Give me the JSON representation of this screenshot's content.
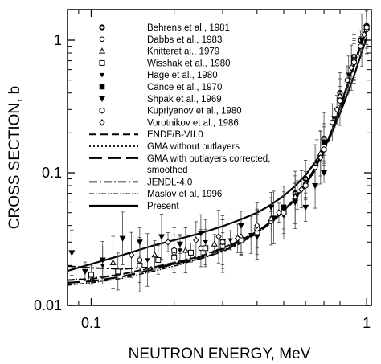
{
  "chart_data": {
    "type": "scatter",
    "xlabel": "NEUTRON ENERGY, MeV",
    "ylabel": "CROSS SECTION, b",
    "xscale": "log",
    "yscale": "log",
    "xlim": [
      0.082,
      1.04
    ],
    "ylim": [
      0.01,
      1.7
    ],
    "x_ticks": [
      {
        "value": 0.1,
        "label": "0.1"
      },
      {
        "value": 1,
        "label": "1"
      }
    ],
    "y_ticks": [
      {
        "value": 0.01,
        "label": "0.01"
      },
      {
        "value": 0.1,
        "label": "0.1"
      },
      {
        "value": 1,
        "label": "1"
      }
    ],
    "grid": false,
    "legend_position": "top-left",
    "series": [
      {
        "name": "Behrens et al., 1981",
        "kind": "points",
        "marker": "circle-bold",
        "points": [
          [
            0.55,
            0.07
          ],
          [
            0.6,
            0.09
          ],
          [
            0.7,
            0.18
          ],
          [
            0.8,
            0.4
          ],
          [
            0.9,
            0.75
          ],
          [
            0.95,
            1.0
          ],
          [
            1.0,
            1.28
          ]
        ]
      },
      {
        "name": "Dabbs et al., 1983",
        "kind": "points",
        "marker": "circle-open",
        "points": [
          [
            0.15,
            0.022
          ],
          [
            0.2,
            0.025
          ],
          [
            0.25,
            0.027
          ],
          [
            0.3,
            0.028
          ],
          [
            0.35,
            0.032
          ],
          [
            0.4,
            0.036
          ],
          [
            0.45,
            0.043
          ],
          [
            0.5,
            0.052
          ],
          [
            0.55,
            0.065
          ],
          [
            0.6,
            0.082
          ],
          [
            0.65,
            0.11
          ],
          [
            0.7,
            0.16
          ],
          [
            0.75,
            0.24
          ],
          [
            0.8,
            0.36
          ],
          [
            0.85,
            0.5
          ],
          [
            0.9,
            0.7
          ],
          [
            0.95,
            0.9
          ],
          [
            1.0,
            1.2
          ]
        ]
      },
      {
        "name": "Knitteret al., 1979",
        "kind": "points",
        "marker": "triangle-open",
        "points": [
          [
            0.12,
            0.021
          ],
          [
            0.17,
            0.024
          ],
          [
            0.22,
            0.026
          ],
          [
            0.28,
            0.029
          ],
          [
            0.35,
            0.033
          ],
          [
            0.45,
            0.045
          ],
          [
            0.55,
            0.066
          ],
          [
            0.68,
            0.14
          ],
          [
            0.8,
            0.38
          ],
          [
            0.9,
            0.72
          ],
          [
            1.0,
            1.25
          ]
        ]
      },
      {
        "name": "Wisshak et al., 1980",
        "kind": "points",
        "marker": "square-open",
        "points": [
          [
            0.1,
            0.017
          ],
          [
            0.125,
            0.018
          ],
          [
            0.15,
            0.02
          ],
          [
            0.175,
            0.022
          ],
          [
            0.2,
            0.023
          ],
          [
            0.23,
            0.025
          ],
          [
            0.26,
            0.027
          ],
          [
            0.3,
            0.028
          ],
          [
            0.35,
            0.031
          ],
          [
            0.4,
            0.035
          ]
        ]
      },
      {
        "name": "Hage et al., 1980",
        "kind": "points",
        "marker": "triangle-down-small",
        "points": [
          [
            0.11,
            0.02
          ],
          [
            0.16,
            0.022
          ],
          [
            0.21,
            0.026
          ],
          [
            0.26,
            0.03
          ],
          [
            0.32,
            0.031
          ],
          [
            0.38,
            0.034
          ],
          [
            0.46,
            0.046
          ],
          [
            0.56,
            0.068
          ],
          [
            0.66,
            0.12
          ],
          [
            0.76,
            0.26
          ],
          [
            0.86,
            0.55
          ],
          [
            0.96,
            1.0
          ]
        ]
      },
      {
        "name": "Cance et al., 1970",
        "kind": "points",
        "marker": "square-filled",
        "points": [
          [
            0.3,
            0.03
          ],
          [
            0.5,
            0.055
          ],
          [
            0.7,
            0.17
          ]
        ]
      },
      {
        "name": "Shpak et al., 1969",
        "kind": "points",
        "marker": "triangle-down-filled",
        "points": [
          [
            0.085,
            0.025
          ],
          [
            0.095,
            0.018
          ],
          [
            0.11,
            0.022
          ],
          [
            0.13,
            0.032
          ],
          [
            0.15,
            0.03
          ],
          [
            0.18,
            0.033
          ],
          [
            0.21,
            0.029
          ],
          [
            0.25,
            0.035
          ],
          [
            0.3,
            0.03
          ],
          [
            0.35,
            0.04
          ],
          [
            0.4,
            0.033
          ],
          [
            0.45,
            0.055
          ],
          [
            0.5,
            0.048
          ],
          [
            0.55,
            0.06
          ],
          [
            0.6,
            0.055
          ],
          [
            0.65,
            0.08
          ],
          [
            0.7,
            0.1
          ]
        ]
      },
      {
        "name": "Kupriyanov et al., 1980",
        "kind": "points",
        "marker": "hexagon-open",
        "points": [
          [
            0.2,
            0.026
          ],
          [
            0.3,
            0.03
          ],
          [
            0.4,
            0.038
          ],
          [
            0.5,
            0.05
          ],
          [
            0.6,
            0.08
          ],
          [
            0.7,
            0.15
          ],
          [
            0.8,
            0.35
          ],
          [
            0.9,
            0.68
          ],
          [
            1.0,
            1.25
          ]
        ]
      },
      {
        "name": "Vorotnikov et al., 1986",
        "kind": "points",
        "marker": "diamond-open",
        "points": [
          [
            0.14,
            0.024
          ],
          [
            0.19,
            0.03
          ],
          [
            0.24,
            0.031
          ],
          [
            0.29,
            0.033
          ],
          [
            0.34,
            0.032
          ],
          [
            0.4,
            0.04
          ],
          [
            0.48,
            0.05
          ],
          [
            0.58,
            0.075
          ],
          [
            0.68,
            0.13
          ],
          [
            0.78,
            0.3
          ],
          [
            0.88,
            0.62
          ],
          [
            0.98,
            1.1
          ]
        ]
      },
      {
        "name": "ENDF/B-VII.0",
        "kind": "line",
        "dash": "9,5",
        "width": 2,
        "points": [
          [
            0.082,
            0.0155
          ],
          [
            0.1,
            0.0158
          ],
          [
            0.13,
            0.0172
          ],
          [
            0.17,
            0.0195
          ],
          [
            0.2,
            0.021
          ],
          [
            0.25,
            0.0235
          ],
          [
            0.3,
            0.027
          ],
          [
            0.35,
            0.031
          ],
          [
            0.4,
            0.036
          ],
          [
            0.45,
            0.043
          ],
          [
            0.5,
            0.052
          ],
          [
            0.55,
            0.064
          ],
          [
            0.6,
            0.081
          ],
          [
            0.65,
            0.106
          ],
          [
            0.7,
            0.145
          ],
          [
            0.75,
            0.21
          ],
          [
            0.8,
            0.31
          ],
          [
            0.85,
            0.46
          ],
          [
            0.9,
            0.66
          ],
          [
            0.95,
            0.92
          ],
          [
            1.0,
            1.25
          ]
        ]
      },
      {
        "name": "GMA without outlayers",
        "kind": "line",
        "dash": "2,3",
        "width": 1.8,
        "points": [
          [
            0.082,
            0.0155
          ],
          [
            0.1,
            0.016
          ],
          [
            0.13,
            0.0172
          ],
          [
            0.17,
            0.0193
          ],
          [
            0.2,
            0.021
          ],
          [
            0.25,
            0.0238
          ],
          [
            0.3,
            0.0272
          ],
          [
            0.35,
            0.031
          ],
          [
            0.4,
            0.036
          ],
          [
            0.45,
            0.043
          ],
          [
            0.5,
            0.052
          ],
          [
            0.55,
            0.065
          ],
          [
            0.6,
            0.083
          ],
          [
            0.65,
            0.108
          ],
          [
            0.7,
            0.15
          ],
          [
            0.75,
            0.215
          ],
          [
            0.8,
            0.315
          ],
          [
            0.85,
            0.46
          ],
          [
            0.9,
            0.66
          ],
          [
            0.95,
            0.92
          ],
          [
            1.0,
            1.22
          ]
        ]
      },
      {
        "name": "GMA with outlayers corrected, smoothed",
        "kind": "line",
        "dash": "16,7",
        "width": 2.2,
        "points": [
          [
            0.082,
            0.0148
          ],
          [
            0.1,
            0.0152
          ],
          [
            0.13,
            0.0165
          ],
          [
            0.17,
            0.0188
          ],
          [
            0.2,
            0.0205
          ],
          [
            0.25,
            0.0232
          ],
          [
            0.3,
            0.0268
          ],
          [
            0.35,
            0.0305
          ],
          [
            0.4,
            0.0355
          ],
          [
            0.45,
            0.0425
          ],
          [
            0.5,
            0.051
          ],
          [
            0.55,
            0.063
          ],
          [
            0.6,
            0.08
          ],
          [
            0.65,
            0.105
          ],
          [
            0.7,
            0.143
          ],
          [
            0.75,
            0.205
          ],
          [
            0.8,
            0.3
          ],
          [
            0.85,
            0.44
          ],
          [
            0.9,
            0.64
          ],
          [
            0.95,
            0.9
          ],
          [
            1.0,
            1.2
          ]
        ]
      },
      {
        "name": "JENDL-4.0",
        "kind": "line",
        "dash": "10,3,2,3",
        "width": 1.8,
        "points": [
          [
            0.082,
            0.0198
          ],
          [
            0.1,
            0.0192
          ],
          [
            0.13,
            0.0188
          ],
          [
            0.17,
            0.0195
          ],
          [
            0.2,
            0.0205
          ],
          [
            0.25,
            0.0225
          ],
          [
            0.3,
            0.0255
          ],
          [
            0.35,
            0.0295
          ],
          [
            0.4,
            0.035
          ],
          [
            0.45,
            0.042
          ],
          [
            0.5,
            0.0515
          ],
          [
            0.55,
            0.0645
          ],
          [
            0.6,
            0.083
          ],
          [
            0.65,
            0.11
          ],
          [
            0.7,
            0.15
          ],
          [
            0.75,
            0.215
          ],
          [
            0.8,
            0.315
          ],
          [
            0.85,
            0.46
          ],
          [
            0.9,
            0.66
          ],
          [
            0.95,
            0.9
          ],
          [
            1.0,
            1.18
          ]
        ]
      },
      {
        "name": "Maslov et al, 1996",
        "kind": "line",
        "dash": "6,2,1.5,2,1.5,2",
        "width": 1.5,
        "points": [
          [
            0.082,
            0.0142
          ],
          [
            0.1,
            0.0148
          ],
          [
            0.13,
            0.016
          ],
          [
            0.17,
            0.0182
          ],
          [
            0.2,
            0.0198
          ],
          [
            0.25,
            0.0226
          ],
          [
            0.3,
            0.026
          ],
          [
            0.35,
            0.0298
          ],
          [
            0.4,
            0.0348
          ],
          [
            0.45,
            0.0418
          ],
          [
            0.5,
            0.051
          ],
          [
            0.55,
            0.0635
          ],
          [
            0.6,
            0.081
          ],
          [
            0.65,
            0.107
          ],
          [
            0.7,
            0.147
          ],
          [
            0.75,
            0.21
          ],
          [
            0.8,
            0.31
          ],
          [
            0.85,
            0.455
          ],
          [
            0.9,
            0.655
          ],
          [
            0.95,
            0.91
          ],
          [
            1.0,
            1.22
          ]
        ]
      },
      {
        "name": "Present",
        "kind": "line",
        "dash": "",
        "width": 2.2,
        "points": [
          [
            0.082,
            0.0182
          ],
          [
            0.1,
            0.0205
          ],
          [
            0.13,
            0.024
          ],
          [
            0.17,
            0.0285
          ],
          [
            0.2,
            0.031
          ],
          [
            0.25,
            0.035
          ],
          [
            0.3,
            0.0395
          ],
          [
            0.35,
            0.0445
          ],
          [
            0.4,
            0.05
          ],
          [
            0.45,
            0.0575
          ],
          [
            0.5,
            0.067
          ],
          [
            0.55,
            0.0795
          ],
          [
            0.6,
            0.096
          ],
          [
            0.65,
            0.12
          ],
          [
            0.7,
            0.155
          ],
          [
            0.75,
            0.205
          ],
          [
            0.8,
            0.28
          ],
          [
            0.85,
            0.39
          ],
          [
            0.9,
            0.54
          ],
          [
            0.95,
            0.76
          ],
          [
            1.0,
            1.05
          ]
        ]
      }
    ]
  }
}
